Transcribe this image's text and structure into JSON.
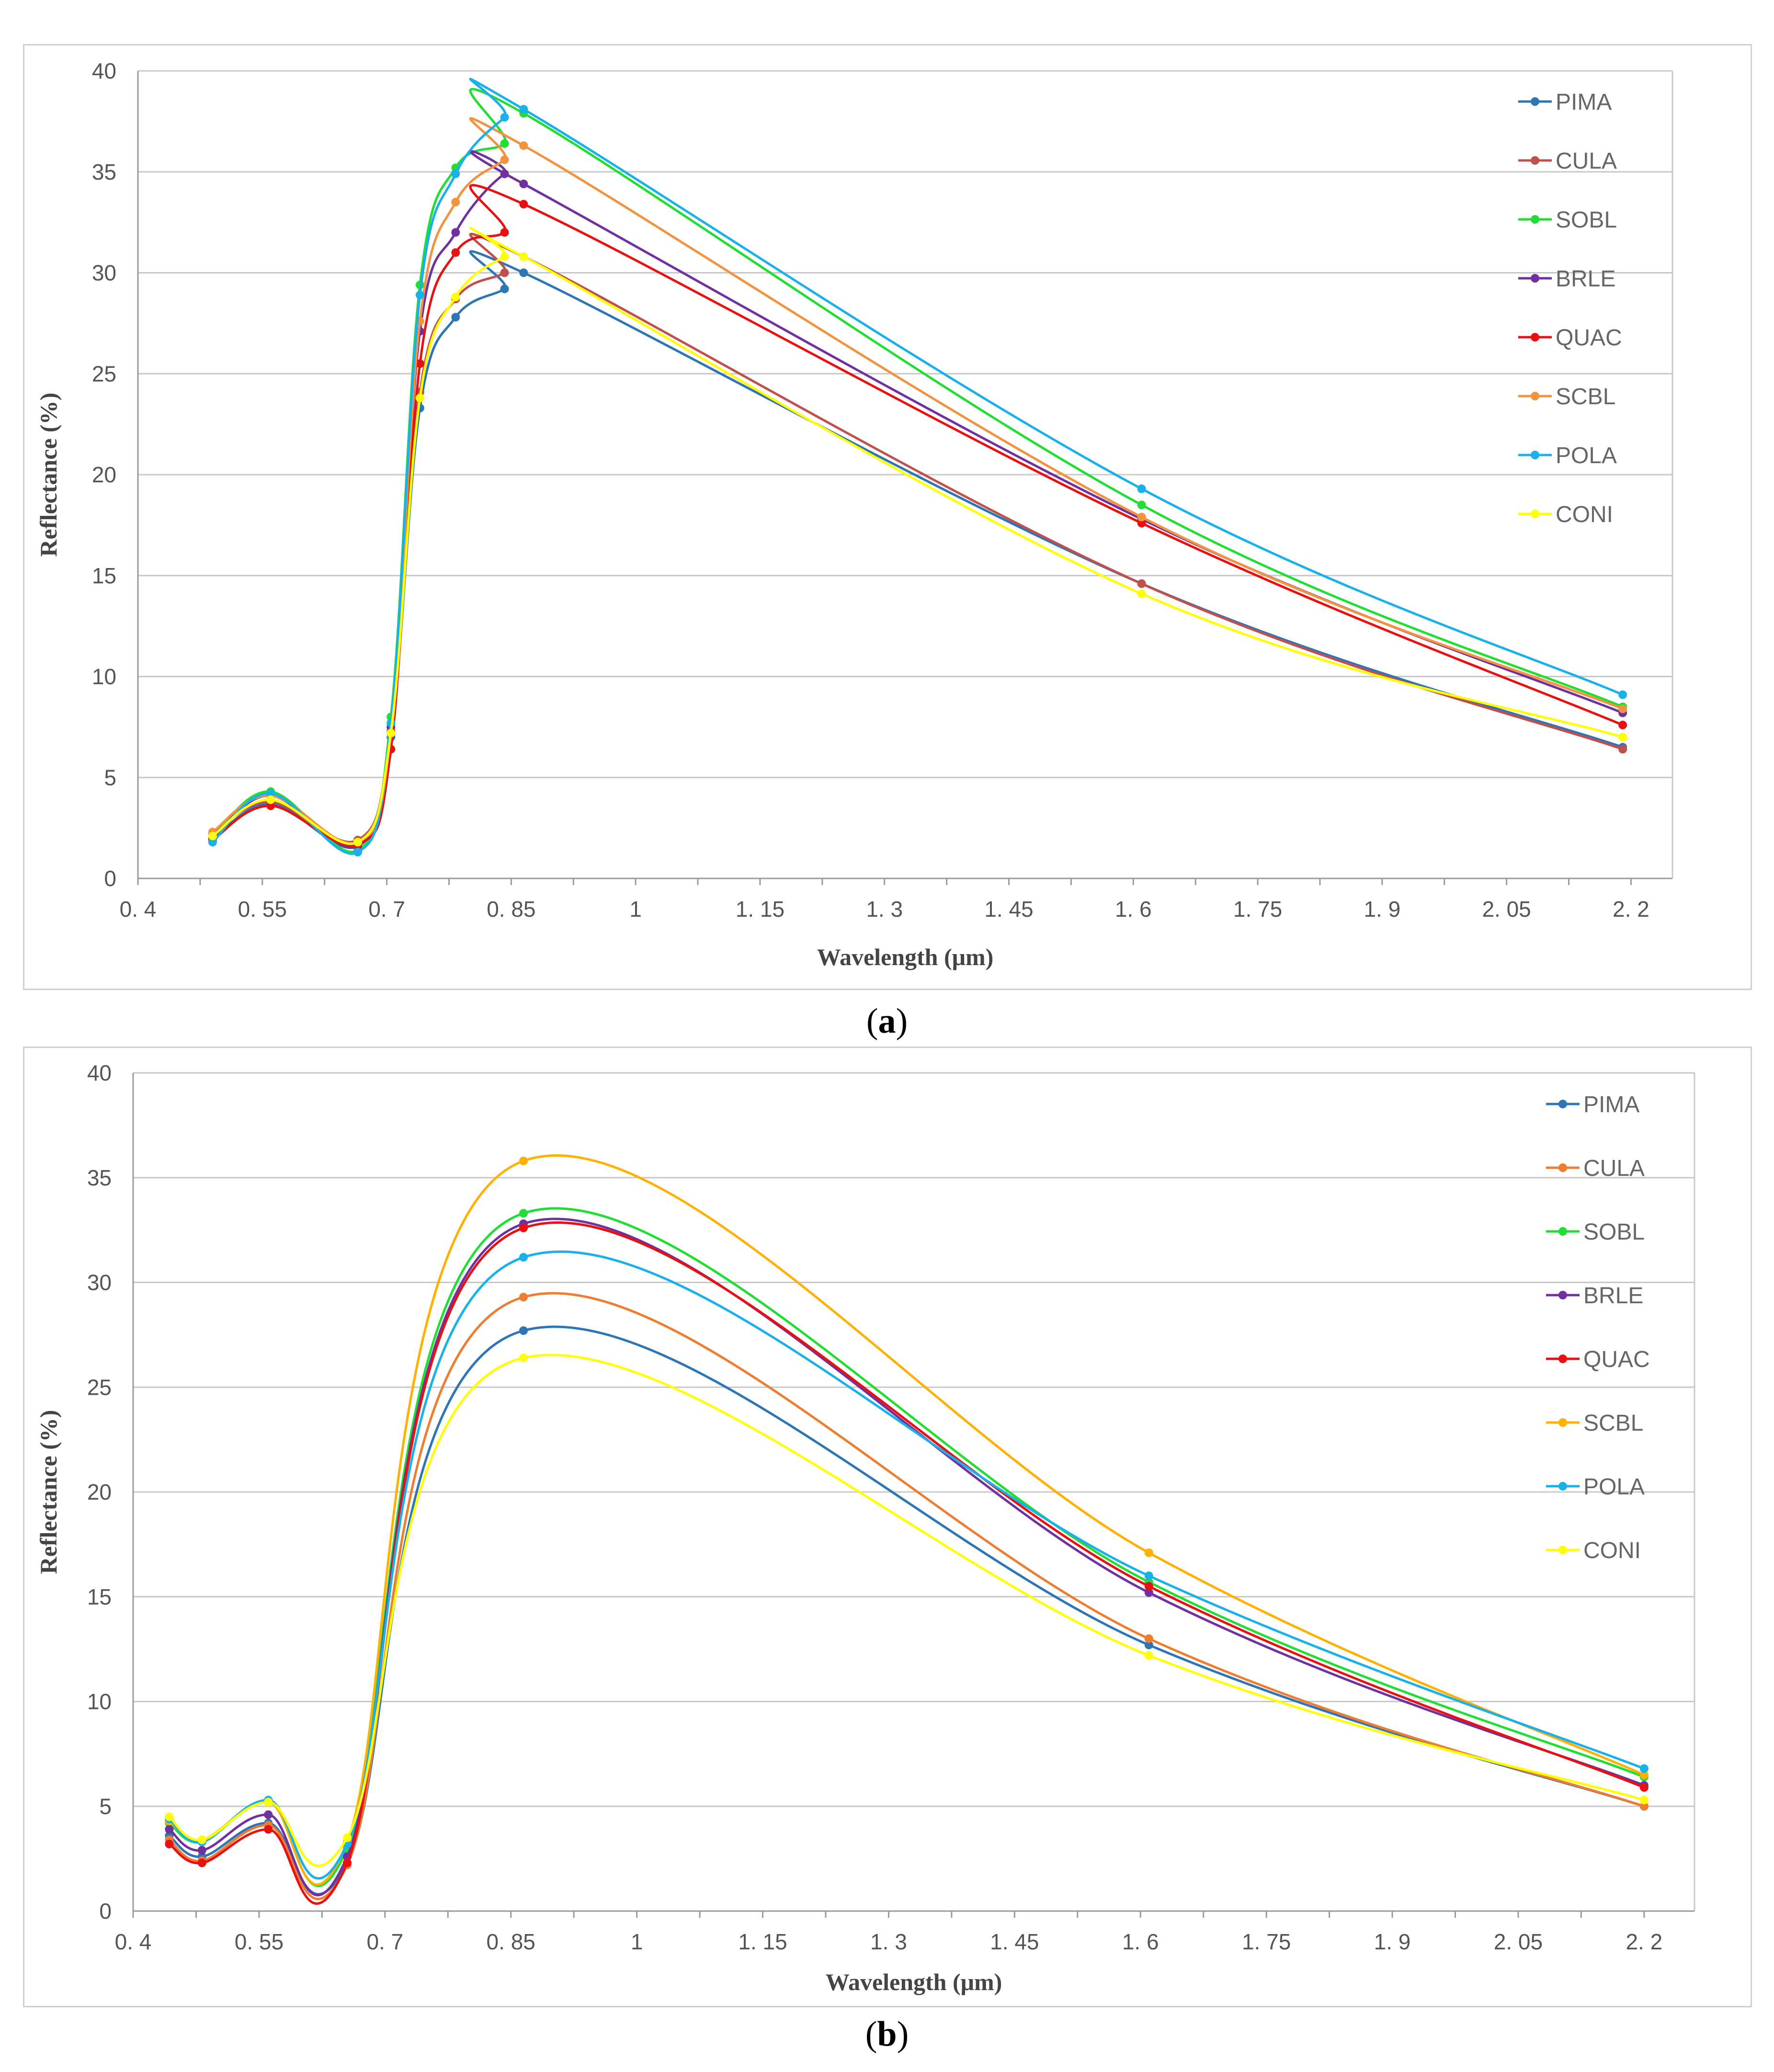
{
  "chart_data": [
    {
      "id": "a",
      "type": "line",
      "caption": {
        "open": "(",
        "letter": "a",
        "close": ")"
      },
      "xlabel": "Wavelength (μm)",
      "ylabel": "Reflectance (%)",
      "xlim": [
        0.4,
        2.25
      ],
      "ylim": [
        0,
        40
      ],
      "xticks": [
        0.4,
        0.55,
        0.7,
        0.85,
        1,
        1.15,
        1.3,
        1.45,
        1.6,
        1.75,
        1.9,
        2.05,
        2.2
      ],
      "xtick_labels": [
        "0. 4",
        "0. 55",
        "0. 7",
        "0. 85",
        "1",
        "1. 15",
        "1. 3",
        "1. 45",
        "1. 6",
        "1. 75",
        "1. 9",
        "2. 05",
        "2. 2"
      ],
      "yticks": [
        0,
        5,
        10,
        15,
        20,
        25,
        30,
        35,
        40
      ],
      "ytick_labels": [
        "0",
        "5",
        "10",
        "15",
        "20",
        "25",
        "30",
        "35",
        "40"
      ],
      "grid": true,
      "legend": "right",
      "x": [
        0.49,
        0.56,
        0.665,
        0.705,
        0.74,
        0.783,
        0.842,
        0.865,
        1.61,
        2.19
      ],
      "series": [
        {
          "name": "PIMA",
          "color": "#2e75b6",
          "values": [
            1.9,
            3.7,
            1.6,
            7.0,
            23.3,
            27.8,
            29.2,
            30.0,
            14.6,
            6.5
          ]
        },
        {
          "name": "CULA",
          "color": "#c0504d",
          "values": [
            2.2,
            3.8,
            1.9,
            7.3,
            24.1,
            28.7,
            30.0,
            30.8,
            14.6,
            6.4
          ]
        },
        {
          "name": "SOBL",
          "color": "#22dd33",
          "values": [
            2.0,
            4.3,
            1.4,
            8.0,
            29.4,
            35.2,
            36.4,
            37.9,
            18.5,
            8.5
          ]
        },
        {
          "name": "BRLE",
          "color": "#7030a0",
          "values": [
            2.0,
            4.1,
            1.6,
            7.5,
            27.1,
            32.0,
            34.9,
            34.4,
            17.8,
            8.2
          ]
        },
        {
          "name": "QUAC",
          "color": "#e81010",
          "values": [
            1.9,
            3.6,
            1.7,
            6.4,
            25.5,
            31.0,
            32.0,
            33.4,
            17.6,
            7.6
          ]
        },
        {
          "name": "SCBL",
          "color": "#f29340",
          "values": [
            2.3,
            4.1,
            1.8,
            7.2,
            27.6,
            33.5,
            35.6,
            36.3,
            17.9,
            8.4
          ]
        },
        {
          "name": "POLA",
          "color": "#1ab0ea",
          "values": [
            1.8,
            4.2,
            1.3,
            7.7,
            28.9,
            34.9,
            37.7,
            38.1,
            19.3,
            9.1
          ]
        },
        {
          "name": "CONI",
          "color": "#ffff00",
          "values": [
            2.1,
            3.9,
            1.8,
            7.2,
            23.8,
            28.8,
            30.8,
            30.8,
            14.1,
            7.0
          ]
        }
      ]
    },
    {
      "id": "b",
      "type": "line",
      "caption": {
        "open": "(",
        "letter": "b",
        "close": ")"
      },
      "xlabel": "Wavelength (μm)",
      "ylabel": "Reflectance (%)",
      "xlim": [
        0.4,
        2.26
      ],
      "ylim": [
        0,
        40
      ],
      "xticks": [
        0.4,
        0.55,
        0.7,
        0.85,
        1,
        1.15,
        1.3,
        1.45,
        1.6,
        1.75,
        1.9,
        2.05,
        2.2
      ],
      "xtick_labels": [
        "0. 4",
        "0. 55",
        "0. 7",
        "0. 85",
        "1",
        "1. 15",
        "1. 3",
        "1. 45",
        "1. 6",
        "1. 75",
        "1. 9",
        "2. 05",
        "2. 2"
      ],
      "yticks": [
        0,
        5,
        10,
        15,
        20,
        25,
        30,
        35,
        40
      ],
      "ytick_labels": [
        "0",
        "5",
        "10",
        "15",
        "20",
        "25",
        "30",
        "35",
        "40"
      ],
      "grid": true,
      "legend": "right",
      "x": [
        0.443,
        0.482,
        0.561,
        0.655,
        0.865,
        1.61,
        2.2
      ],
      "series": [
        {
          "name": "PIMA",
          "color": "#2e75b6",
          "values": [
            3.6,
            2.6,
            4.2,
            2.3,
            27.7,
            12.7,
            5.0
          ]
        },
        {
          "name": "CULA",
          "color": "#ed7d31",
          "values": [
            3.4,
            2.4,
            4.1,
            2.2,
            29.3,
            13.0,
            5.0
          ]
        },
        {
          "name": "SOBL",
          "color": "#22dd33",
          "values": [
            4.2,
            3.3,
            5.2,
            3.0,
            33.3,
            15.7,
            6.4
          ]
        },
        {
          "name": "BRLE",
          "color": "#7030a0",
          "values": [
            3.9,
            2.9,
            4.6,
            2.6,
            32.8,
            15.2,
            6.0
          ]
        },
        {
          "name": "QUAC",
          "color": "#e81010",
          "values": [
            3.2,
            2.3,
            3.9,
            2.3,
            32.6,
            15.5,
            5.9
          ]
        },
        {
          "name": "SCBL",
          "color": "#ffb000",
          "values": [
            4.3,
            3.4,
            5.2,
            3.3,
            35.8,
            17.1,
            6.5
          ]
        },
        {
          "name": "POLA",
          "color": "#1ab0ea",
          "values": [
            4.4,
            3.3,
            5.3,
            3.2,
            31.2,
            16.0,
            6.8
          ]
        },
        {
          "name": "CONI",
          "color": "#ffff00",
          "values": [
            4.5,
            3.4,
            5.2,
            3.5,
            26.4,
            12.2,
            5.3
          ]
        }
      ]
    }
  ]
}
